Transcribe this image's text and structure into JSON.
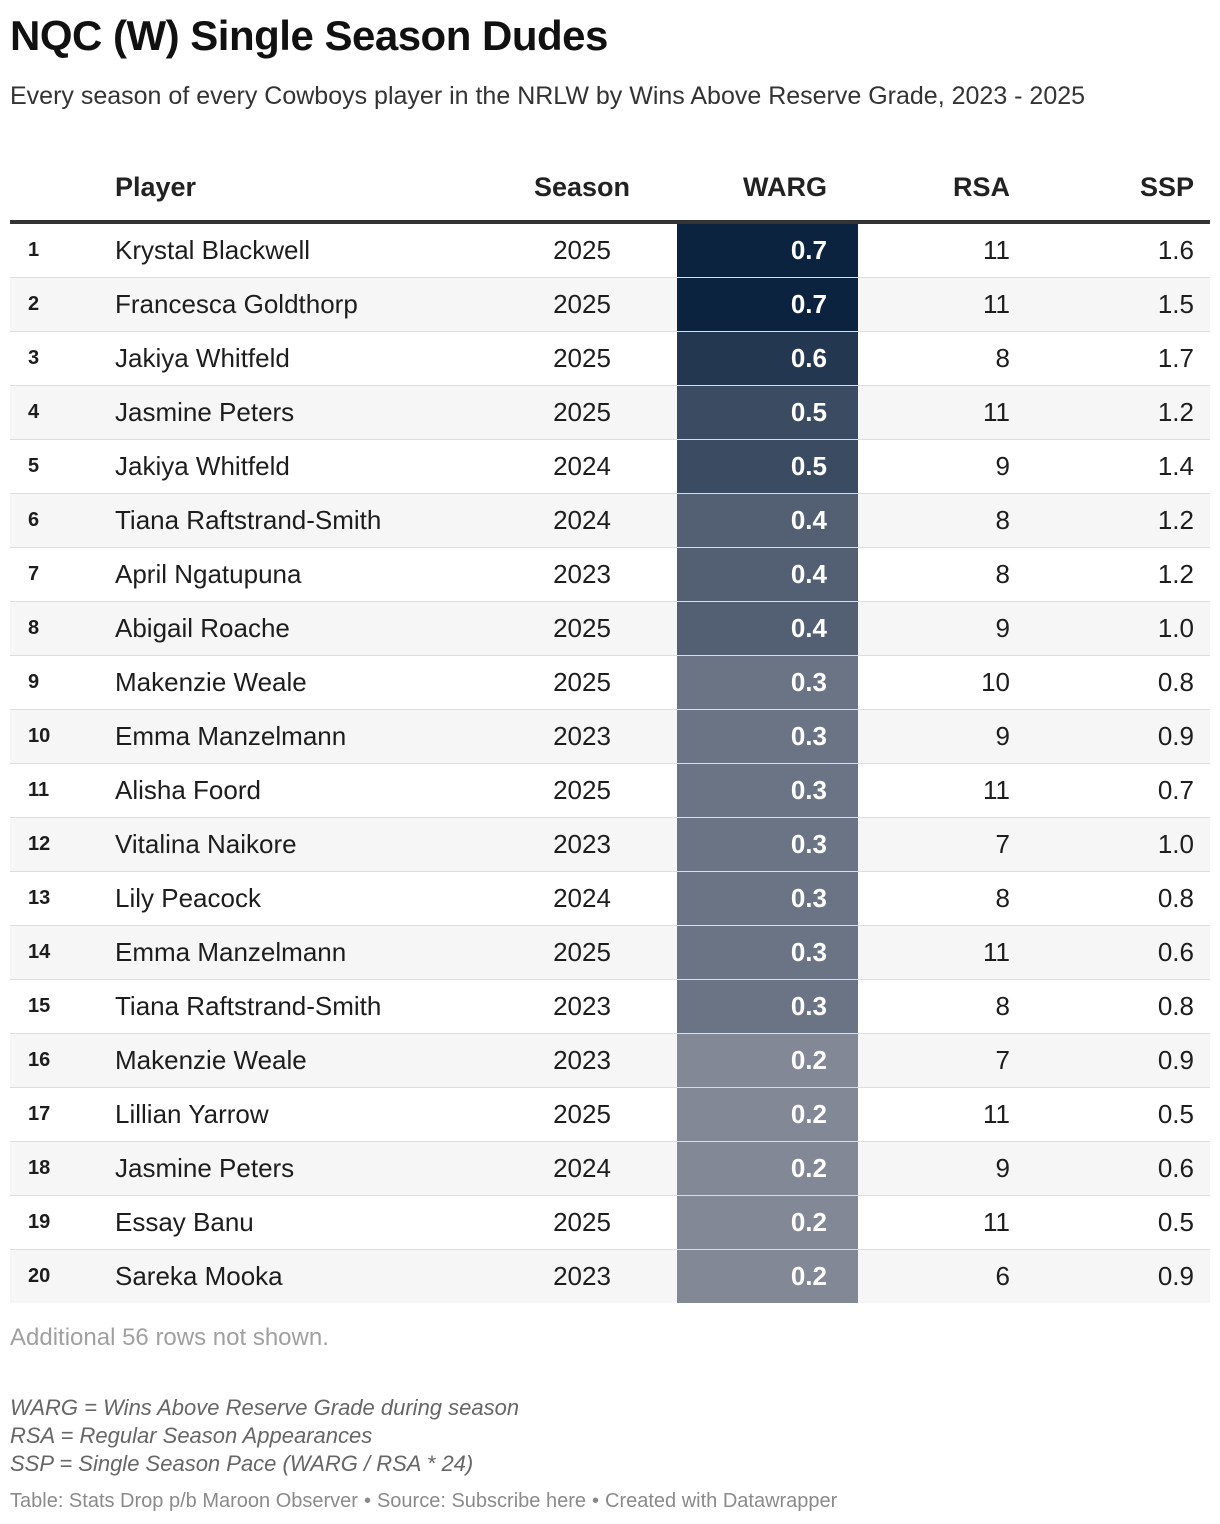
{
  "title": "NQC (W) Single Season Dudes",
  "subtitle": "Every season of every Cowboys player in the NRLW by Wins Above Reserve Grade, 2023 - 2025",
  "columns": {
    "rank": "",
    "player": "Player",
    "season": "Season",
    "warg": "WARG",
    "rsa": "RSA",
    "ssp": "SSP"
  },
  "colors": {
    "warg_dark": "#0c2340",
    "warg_light": "#828895"
  },
  "chart_data": {
    "type": "table",
    "columns": [
      "",
      "Player",
      "Season",
      "WARG",
      "RSA",
      "SSP"
    ],
    "rows": [
      {
        "rank": "1",
        "player": "Krystal Blackwell",
        "season": "2025",
        "warg": "0.7",
        "rsa": "11",
        "ssp": "1.6"
      },
      {
        "rank": "2",
        "player": "Francesca Goldthorp",
        "season": "2025",
        "warg": "0.7",
        "rsa": "11",
        "ssp": "1.5"
      },
      {
        "rank": "3",
        "player": "Jakiya Whitfeld",
        "season": "2025",
        "warg": "0.6",
        "rsa": "8",
        "ssp": "1.7"
      },
      {
        "rank": "4",
        "player": "Jasmine Peters",
        "season": "2025",
        "warg": "0.5",
        "rsa": "11",
        "ssp": "1.2"
      },
      {
        "rank": "5",
        "player": "Jakiya Whitfeld",
        "season": "2024",
        "warg": "0.5",
        "rsa": "9",
        "ssp": "1.4"
      },
      {
        "rank": "6",
        "player": "Tiana Raftstrand-Smith",
        "season": "2024",
        "warg": "0.4",
        "rsa": "8",
        "ssp": "1.2"
      },
      {
        "rank": "7",
        "player": "April Ngatupuna",
        "season": "2023",
        "warg": "0.4",
        "rsa": "8",
        "ssp": "1.2"
      },
      {
        "rank": "8",
        "player": "Abigail Roache",
        "season": "2025",
        "warg": "0.4",
        "rsa": "9",
        "ssp": "1.0"
      },
      {
        "rank": "9",
        "player": "Makenzie Weale",
        "season": "2025",
        "warg": "0.3",
        "rsa": "10",
        "ssp": "0.8"
      },
      {
        "rank": "10",
        "player": "Emma Manzelmann",
        "season": "2023",
        "warg": "0.3",
        "rsa": "9",
        "ssp": "0.9"
      },
      {
        "rank": "11",
        "player": "Alisha Foord",
        "season": "2025",
        "warg": "0.3",
        "rsa": "11",
        "ssp": "0.7"
      },
      {
        "rank": "12",
        "player": "Vitalina Naikore",
        "season": "2023",
        "warg": "0.3",
        "rsa": "7",
        "ssp": "1.0"
      },
      {
        "rank": "13",
        "player": "Lily Peacock",
        "season": "2024",
        "warg": "0.3",
        "rsa": "8",
        "ssp": "0.8"
      },
      {
        "rank": "14",
        "player": "Emma Manzelmann",
        "season": "2025",
        "warg": "0.3",
        "rsa": "11",
        "ssp": "0.6"
      },
      {
        "rank": "15",
        "player": "Tiana Raftstrand-Smith",
        "season": "2023",
        "warg": "0.3",
        "rsa": "8",
        "ssp": "0.8"
      },
      {
        "rank": "16",
        "player": "Makenzie Weale",
        "season": "2023",
        "warg": "0.2",
        "rsa": "7",
        "ssp": "0.9"
      },
      {
        "rank": "17",
        "player": "Lillian Yarrow",
        "season": "2025",
        "warg": "0.2",
        "rsa": "11",
        "ssp": "0.5"
      },
      {
        "rank": "18",
        "player": "Jasmine Peters",
        "season": "2024",
        "warg": "0.2",
        "rsa": "9",
        "ssp": "0.6"
      },
      {
        "rank": "19",
        "player": "Essay Banu",
        "season": "2025",
        "warg": "0.2",
        "rsa": "11",
        "ssp": "0.5"
      },
      {
        "rank": "20",
        "player": "Sareka Mooka",
        "season": "2023",
        "warg": "0.2",
        "rsa": "6",
        "ssp": "0.9"
      }
    ]
  },
  "note": "Additional 56 rows not shown.",
  "legend": [
    "WARG = Wins Above Reserve Grade during season",
    "RSA = Regular Season Appearances",
    "SSP = Single Season Pace (WARG / RSA * 24)"
  ],
  "footer": {
    "table_credit": "Table: Stats Drop p/b Maroon Observer",
    "separator": "•",
    "source": "Source: Subscribe here",
    "created": "Created with Datawrapper"
  }
}
